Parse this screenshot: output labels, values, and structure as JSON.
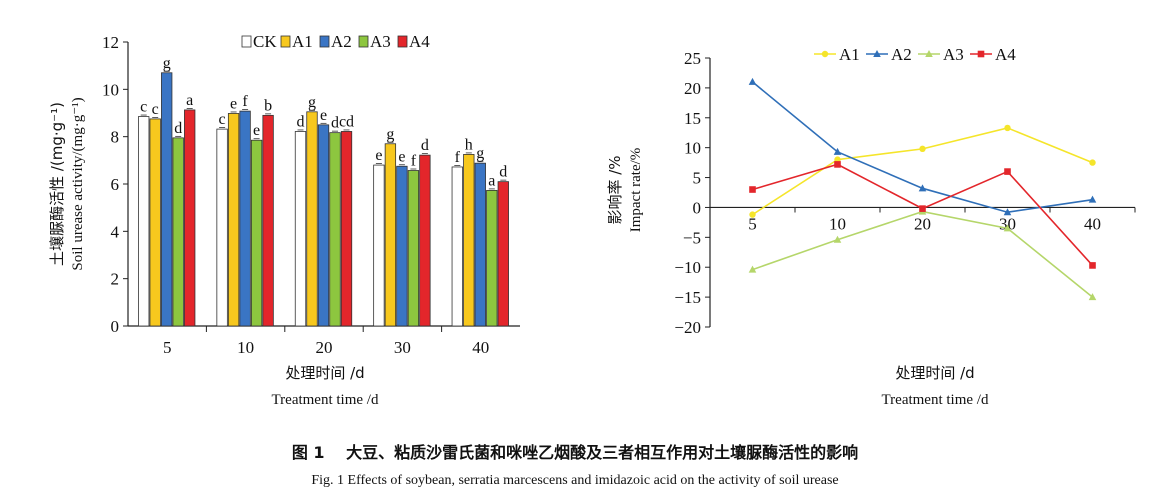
{
  "chart_data": [
    {
      "type": "bar",
      "categories": [
        "5",
        "10",
        "20",
        "30",
        "40"
      ],
      "series": [
        {
          "name": "CK",
          "color": "#ffffff",
          "values": [
            8.85,
            8.32,
            8.22,
            6.8,
            6.72
          ],
          "letters": [
            "c",
            "c",
            "d",
            "e",
            "f"
          ]
        },
        {
          "name": "A1",
          "color": "#f7c81e",
          "values": [
            8.75,
            8.98,
            9.05,
            7.7,
            7.25
          ],
          "letters": [
            "c",
            "e",
            "g",
            "g",
            "h"
          ]
        },
        {
          "name": "A2",
          "color": "#3a75c4",
          "values": [
            10.7,
            9.08,
            8.5,
            6.75,
            6.88
          ],
          "letters": [
            "g",
            "f",
            "e",
            "e",
            "g"
          ]
        },
        {
          "name": "A3",
          "color": "#8dc63f",
          "values": [
            7.95,
            7.85,
            8.17,
            6.57,
            5.73
          ],
          "letters": [
            "d",
            "e",
            "d",
            "f",
            "a"
          ]
        },
        {
          "name": "A4",
          "color": "#e3262b",
          "values": [
            9.13,
            8.9,
            8.22,
            7.22,
            6.1
          ],
          "letters": [
            "a",
            "b",
            "cd",
            "d",
            "d"
          ]
        }
      ],
      "ylim": [
        0,
        12
      ],
      "yticks": [
        "0",
        "2",
        "4",
        "6",
        "8",
        "10",
        "12"
      ],
      "ylabel_cn": "土壤脲酶活性 /(mg·g⁻¹)",
      "ylabel_en": "Soil urease activity/(mg·g⁻¹)",
      "xlabel_cn": "处理时间 /d",
      "xlabel_en": "Treatment time /d",
      "legend": "top-center"
    },
    {
      "type": "line",
      "x": [
        "5",
        "10",
        "20",
        "30",
        "40"
      ],
      "series": [
        {
          "name": "A1",
          "color": "#f5e52a",
          "marker": "circle",
          "values": [
            -1.2,
            8.0,
            9.8,
            13.3,
            7.5
          ]
        },
        {
          "name": "A2",
          "color": "#2f6fb8",
          "marker": "triangle",
          "values": [
            21.0,
            9.3,
            3.2,
            -0.8,
            1.3
          ]
        },
        {
          "name": "A3",
          "color": "#b5d66a",
          "marker": "triangle",
          "values": [
            -10.4,
            -5.4,
            -0.7,
            -3.5,
            -15.0
          ]
        },
        {
          "name": "A4",
          "color": "#e3262b",
          "marker": "square",
          "values": [
            3.0,
            7.2,
            -0.2,
            6.0,
            -9.7
          ]
        }
      ],
      "ylim": [
        -20,
        25
      ],
      "yticks": [
        "−20",
        "−15",
        "−10",
        "−5",
        "0",
        "5",
        "10",
        "15",
        "20",
        "25"
      ],
      "ylabel_cn": "影响率 /%",
      "ylabel_en": "Impact rate/%",
      "xlabel_cn": "处理时间 /d",
      "xlabel_en": "Treatment time /d",
      "legend": "top-center"
    }
  ],
  "caption": {
    "cn": "图 1　 大豆、粘质沙雷氏菌和咪唑乙烟酸及三者相互作用对土壤脲酶活性的影响",
    "en": "Fig. 1 Effects of soybean, serratia marcescens and imidazoic acid on the activity of soil urease"
  }
}
